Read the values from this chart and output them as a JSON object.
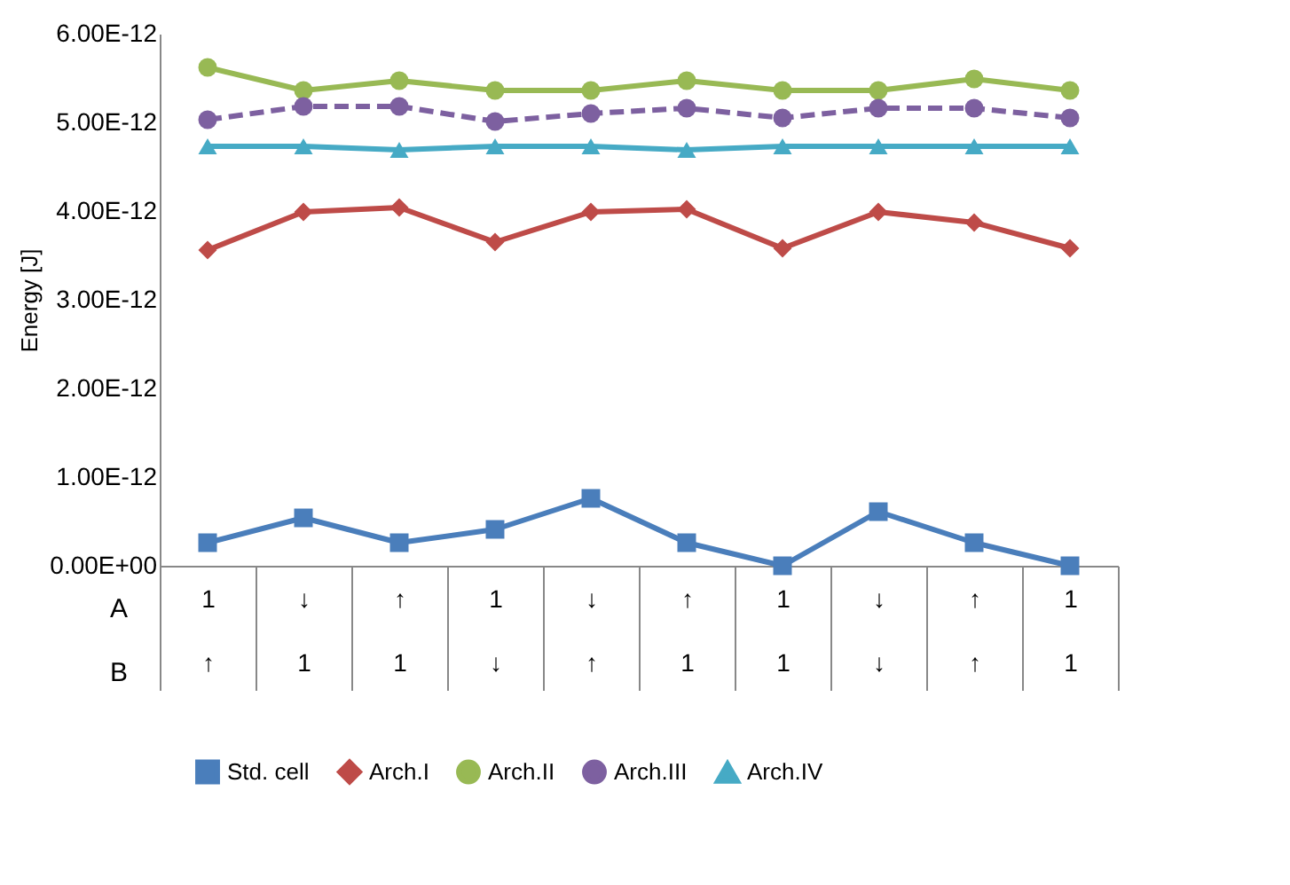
{
  "chart_data": {
    "type": "line",
    "ylabel": "Energy [J]",
    "categories": [
      "1\n↑",
      "↓\n1",
      "↑\n1",
      "1\n↓",
      "↓\n↑",
      "↑\n1",
      "1\n1",
      "↓\n↓",
      "↑\n↑",
      "1\n1"
    ],
    "annotations": [
      "A",
      "B"
    ],
    "series": [
      {
        "name": "Std. cell",
        "color": "#4a7ebb",
        "marker": "square",
        "line_style": "solid",
        "values": [
          2.6e-13,
          5.4e-13,
          2.6e-13,
          4.1e-13,
          7.6e-13,
          2.6e-13,
          0.0,
          6.1e-13,
          2.6e-13,
          0.0
        ]
      },
      {
        "name": "Arch.I",
        "color": "#be4b48",
        "marker": "diamond",
        "line_style": "solid",
        "values": [
          3.56e-12,
          3.99e-12,
          4.04e-12,
          3.65e-12,
          3.99e-12,
          4.02e-12,
          3.58e-12,
          3.99e-12,
          3.87e-12,
          3.58e-12
        ]
      },
      {
        "name": "Arch.II",
        "color": "#98b954",
        "marker": "circle",
        "line_style": "solid",
        "values": [
          5.62e-12,
          5.36e-12,
          5.47e-12,
          5.36e-12,
          5.36e-12,
          5.47e-12,
          5.36e-12,
          5.36e-12,
          5.49e-12,
          5.36e-12
        ]
      },
      {
        "name": "Arch.III",
        "color": "#7d60a0",
        "marker": "circle",
        "line_style": "dashed",
        "values": [
          5.03e-12,
          5.18e-12,
          5.18e-12,
          5.01e-12,
          5.1e-12,
          5.16e-12,
          5.05e-12,
          5.16e-12,
          5.16e-12,
          5.05e-12
        ]
      },
      {
        "name": "Arch.IV",
        "color": "#46aac5",
        "marker": "triangle",
        "line_style": "solid",
        "values": [
          4.73e-12,
          4.73e-12,
          4.69e-12,
          4.73e-12,
          4.73e-12,
          4.69e-12,
          4.73e-12,
          4.73e-12,
          4.73e-12,
          4.73e-12
        ]
      }
    ],
    "ylim": [
      0,
      6e-12
    ],
    "yticks": [
      {
        "value": 0,
        "label": "0.00E+00"
      },
      {
        "value": 1e-12,
        "label": "1.00E-12"
      },
      {
        "value": 2e-12,
        "label": "2.00E-12"
      },
      {
        "value": 3e-12,
        "label": "3.00E-12"
      },
      {
        "value": 4e-12,
        "label": "4.00E-12"
      },
      {
        "value": 5e-12,
        "label": "5.00E-12"
      },
      {
        "value": 6e-12,
        "label": "6.00E-12"
      }
    ],
    "grid": false,
    "legend": "bottom"
  }
}
